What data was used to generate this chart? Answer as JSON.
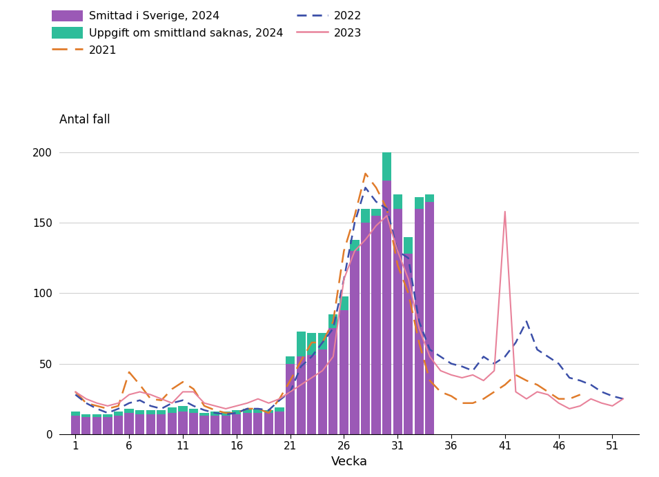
{
  "weeks_2024": [
    1,
    2,
    3,
    4,
    5,
    6,
    7,
    8,
    9,
    10,
    11,
    12,
    13,
    14,
    15,
    16,
    17,
    18,
    19,
    20,
    21,
    22,
    23,
    24,
    25,
    26,
    27,
    28,
    29,
    30,
    31,
    32,
    33,
    34
  ],
  "smittad_sverige_2024": [
    13,
    12,
    12,
    12,
    13,
    15,
    14,
    14,
    14,
    15,
    16,
    15,
    13,
    13,
    13,
    14,
    15,
    15,
    15,
    16,
    50,
    55,
    56,
    60,
    75,
    88,
    130,
    150,
    155,
    180,
    160,
    128,
    160,
    165
  ],
  "uppgift_saknas_2024": [
    3,
    2,
    2,
    2,
    3,
    3,
    3,
    3,
    3,
    4,
    4,
    3,
    2,
    3,
    3,
    3,
    3,
    3,
    2,
    3,
    5,
    18,
    16,
    12,
    10,
    10,
    8,
    10,
    5,
    20,
    10,
    12,
    8,
    5
  ],
  "weeks_2021": [
    1,
    2,
    3,
    4,
    5,
    6,
    7,
    8,
    9,
    10,
    11,
    12,
    13,
    14,
    15,
    16,
    17,
    18,
    19,
    20,
    21,
    22,
    23,
    24,
    25,
    26,
    27,
    28,
    29,
    30,
    31,
    32,
    33,
    34,
    35,
    36,
    37,
    38,
    39,
    40,
    41,
    42,
    43,
    44,
    45,
    46,
    47,
    48
  ],
  "line_2021": [
    30,
    22,
    20,
    18,
    20,
    44,
    35,
    25,
    24,
    32,
    37,
    32,
    20,
    17,
    15,
    15,
    18,
    18,
    15,
    25,
    38,
    52,
    65,
    65,
    80,
    130,
    155,
    185,
    175,
    160,
    120,
    100,
    65,
    38,
    30,
    27,
    22,
    22,
    25,
    30,
    35,
    42,
    38,
    35,
    30,
    25,
    25,
    28
  ],
  "weeks_2022": [
    1,
    2,
    3,
    4,
    5,
    6,
    7,
    8,
    9,
    10,
    11,
    12,
    13,
    14,
    15,
    16,
    17,
    18,
    19,
    20,
    21,
    22,
    23,
    24,
    25,
    26,
    27,
    28,
    29,
    30,
    31,
    32,
    33,
    34,
    35,
    36,
    37,
    38,
    39,
    40,
    41,
    42,
    43,
    44,
    45,
    46,
    47,
    48,
    49,
    50,
    51,
    52
  ],
  "line_2022": [
    28,
    22,
    18,
    15,
    18,
    22,
    24,
    20,
    18,
    22,
    24,
    20,
    17,
    15,
    14,
    15,
    18,
    18,
    17,
    24,
    30,
    48,
    55,
    65,
    75,
    110,
    150,
    175,
    165,
    160,
    130,
    125,
    80,
    60,
    55,
    50,
    48,
    45,
    55,
    50,
    55,
    65,
    80,
    60,
    55,
    50,
    40,
    38,
    35,
    30,
    27,
    25
  ],
  "weeks_2023": [
    1,
    2,
    3,
    4,
    5,
    6,
    7,
    8,
    9,
    10,
    11,
    12,
    13,
    14,
    15,
    16,
    17,
    18,
    19,
    20,
    21,
    22,
    23,
    24,
    25,
    26,
    27,
    28,
    29,
    30,
    31,
    32,
    33,
    34,
    35,
    36,
    37,
    38,
    39,
    40,
    41,
    42,
    43,
    44,
    45,
    46,
    47,
    48,
    49,
    50,
    51,
    52
  ],
  "line_2023": [
    30,
    25,
    22,
    20,
    22,
    28,
    30,
    28,
    25,
    22,
    30,
    30,
    22,
    20,
    18,
    20,
    22,
    25,
    22,
    25,
    30,
    35,
    40,
    45,
    55,
    110,
    130,
    138,
    148,
    155,
    130,
    110,
    75,
    55,
    45,
    42,
    40,
    42,
    38,
    45,
    158,
    30,
    25,
    30,
    28,
    22,
    18,
    20,
    25,
    22,
    20,
    25
  ],
  "color_sverige": "#9b59b6",
  "color_saknas": "#2ebd9a",
  "color_2021": "#e07b2a",
  "color_2022": "#3b4fa8",
  "color_2023": "#e8829a",
  "xlabel": "Vecka",
  "ylabel": "Antal fall",
  "ylim": [
    0,
    210
  ],
  "yticks": [
    0,
    50,
    100,
    150,
    200
  ],
  "xticks": [
    1,
    6,
    11,
    16,
    21,
    26,
    31,
    36,
    41,
    46,
    51
  ],
  "legend_labels": [
    "Smittad i Sverige, 2024",
    "Uppgift om smittland saknas, 2024",
    "2021",
    "2022",
    "2023"
  ]
}
